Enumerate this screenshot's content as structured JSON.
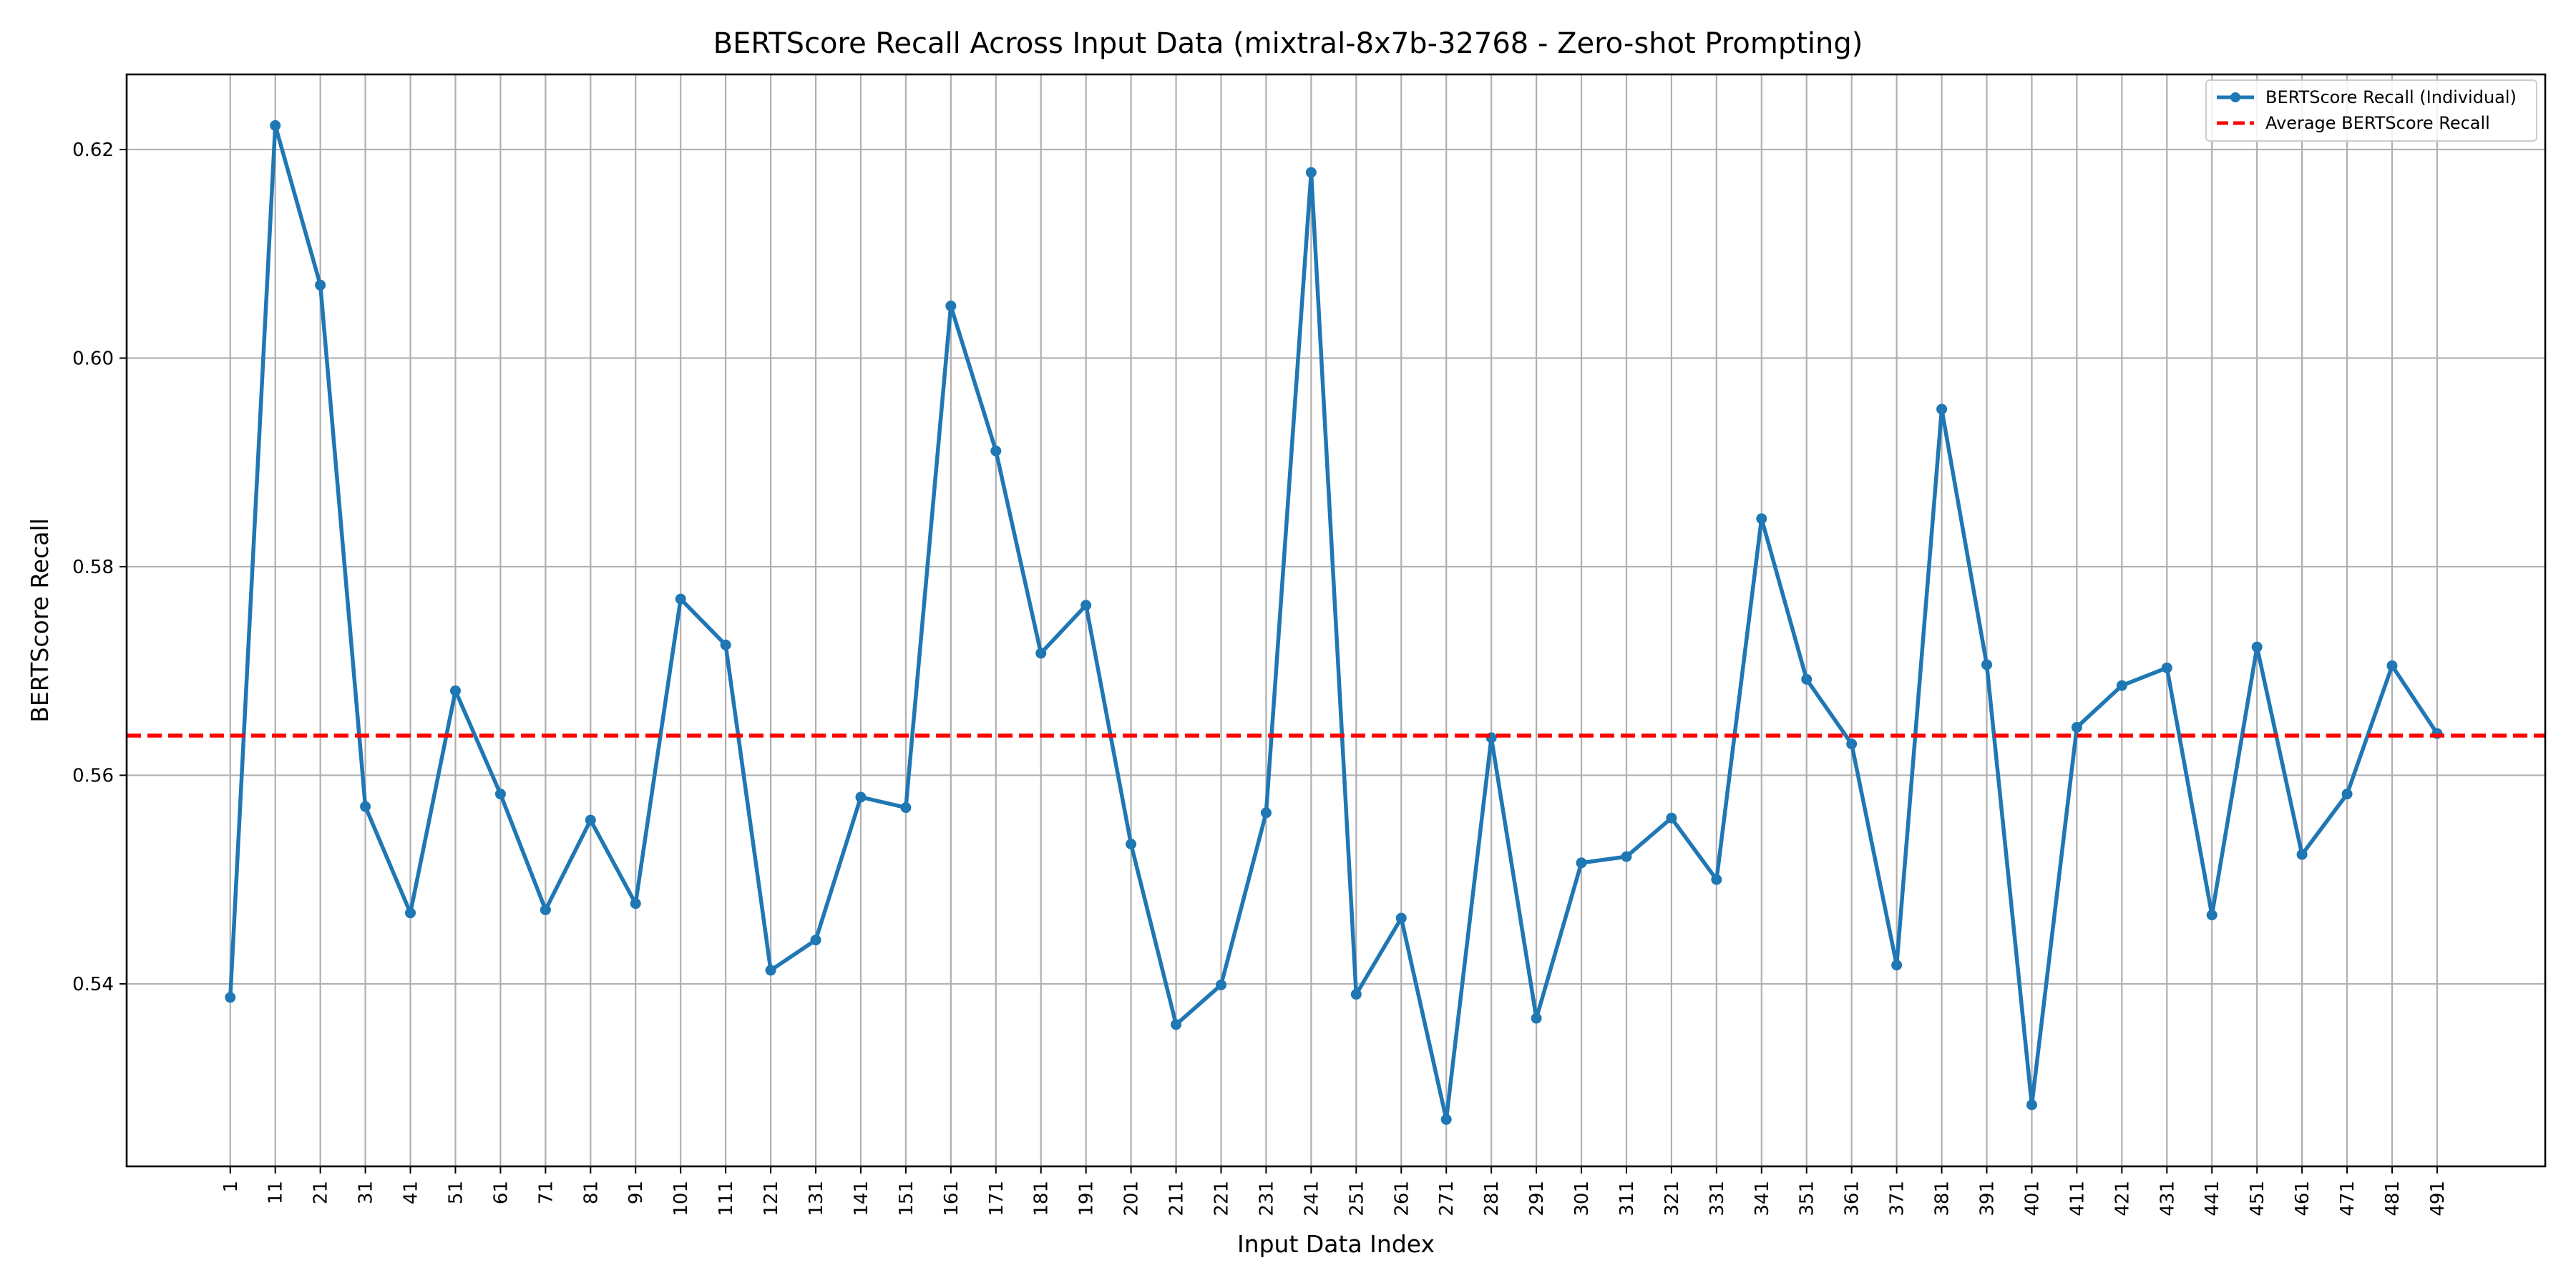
{
  "chart_data": {
    "type": "line",
    "title": "BERTScore Recall Across Input Data (mixtral-8x7b-32768 - Zero-shot Prompting)",
    "xlabel": "Input Data Index",
    "ylabel": "BERTScore Recall",
    "x": [
      1,
      11,
      21,
      31,
      41,
      51,
      61,
      71,
      81,
      91,
      101,
      111,
      121,
      131,
      141,
      151,
      161,
      171,
      181,
      191,
      201,
      211,
      221,
      231,
      241,
      251,
      261,
      271,
      281,
      291,
      301,
      311,
      321,
      331,
      341,
      351,
      361,
      371,
      381,
      391,
      401,
      411,
      421,
      431,
      441,
      451,
      461,
      471,
      481,
      491
    ],
    "x_tick_labels": [
      "1",
      "11",
      "21",
      "31",
      "41",
      "51",
      "61",
      "71",
      "81",
      "91",
      "101",
      "111",
      "121",
      "131",
      "141",
      "151",
      "161",
      "171",
      "181",
      "191",
      "201",
      "211",
      "221",
      "231",
      "241",
      "251",
      "261",
      "271",
      "281",
      "291",
      "301",
      "311",
      "321",
      "331",
      "341",
      "351",
      "361",
      "371",
      "381",
      "391",
      "401",
      "411",
      "421",
      "431",
      "441",
      "451",
      "461",
      "471",
      "481",
      "491"
    ],
    "xlim": [
      -22,
      515
    ],
    "ylim": [
      0.5225,
      0.6272
    ],
    "y_ticks": [
      0.54,
      0.56,
      0.58,
      0.6,
      0.62
    ],
    "y_tick_labels": [
      "0.54",
      "0.56",
      "0.58",
      "0.60",
      "0.62"
    ],
    "grid": true,
    "legend_position": "top-right",
    "series": [
      {
        "name": "BERTScore Recall (Individual)",
        "color": "#1f77b4",
        "style": "solid-with-markers",
        "values": [
          0.5387,
          0.6223,
          0.607,
          0.557,
          0.5468,
          0.5681,
          0.5582,
          0.5471,
          0.5557,
          0.5477,
          0.5769,
          0.5725,
          0.5413,
          0.5442,
          0.5579,
          0.5569,
          0.605,
          0.5911,
          0.5717,
          0.5763,
          0.5534,
          0.5361,
          0.5399,
          0.5564,
          0.6178,
          0.539,
          0.5463,
          0.527,
          0.5636,
          0.5367,
          0.5516,
          0.5522,
          0.5559,
          0.55,
          0.5846,
          0.5692,
          0.563,
          0.5418,
          0.5951,
          0.5706,
          0.5284,
          0.5646,
          0.5686,
          0.5703,
          0.5466,
          0.5723,
          0.5524,
          0.5582,
          0.5705,
          0.564
        ]
      },
      {
        "name": "Average BERTScore Recall",
        "color": "#ff0000",
        "style": "dashed",
        "value": 0.5638
      }
    ]
  }
}
